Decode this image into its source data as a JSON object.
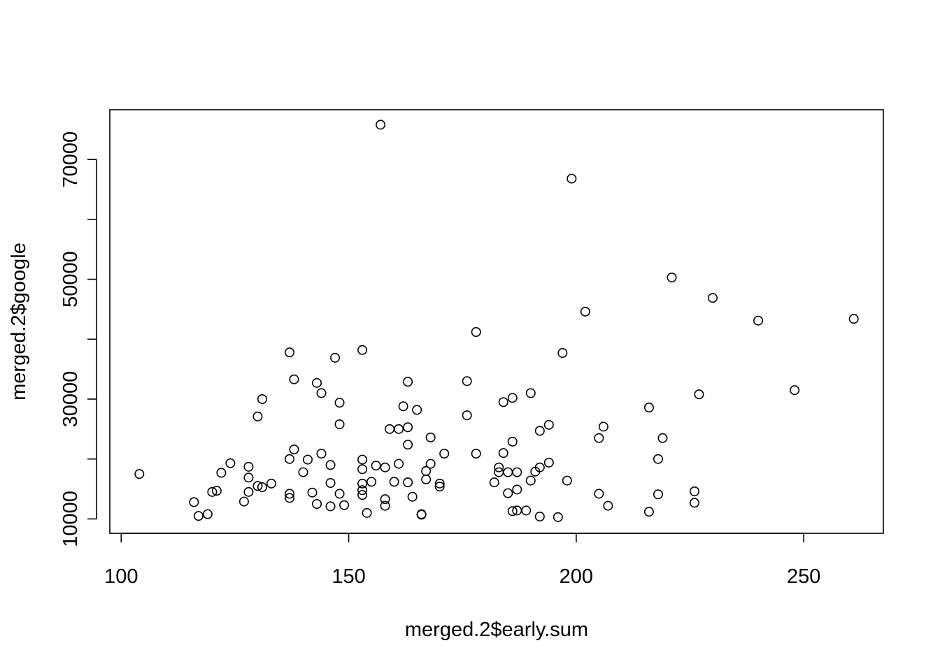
{
  "chart_data": {
    "type": "scatter",
    "title": "",
    "xlabel": "merged.2$early.sum",
    "ylabel": "merged.2$google",
    "xlim": [
      97.5,
      267.5
    ],
    "ylim": [
      7600,
      78300
    ],
    "xticks": [
      100,
      150,
      200,
      250
    ],
    "yticks": [
      10000,
      30000,
      50000,
      70000
    ],
    "ytick_marks": [
      10000,
      20000,
      30000,
      40000,
      50000,
      60000,
      70000
    ],
    "xtick_labels": [
      "100",
      "150",
      "200",
      "250"
    ],
    "ytick_labels": [
      "10000",
      "30000",
      "50000",
      "70000"
    ],
    "grid": false,
    "marker": "open-circle",
    "points": [
      {
        "x": 104,
        "y": 17500
      },
      {
        "x": 116,
        "y": 12800
      },
      {
        "x": 117,
        "y": 10500
      },
      {
        "x": 119,
        "y": 10800
      },
      {
        "x": 120,
        "y": 14500
      },
      {
        "x": 121,
        "y": 14700
      },
      {
        "x": 122,
        "y": 17700
      },
      {
        "x": 124,
        "y": 19300
      },
      {
        "x": 127,
        "y": 12900
      },
      {
        "x": 128,
        "y": 14500
      },
      {
        "x": 128,
        "y": 16900
      },
      {
        "x": 128,
        "y": 18700
      },
      {
        "x": 130,
        "y": 15500
      },
      {
        "x": 130,
        "y": 27100
      },
      {
        "x": 131,
        "y": 15300
      },
      {
        "x": 131,
        "y": 30000
      },
      {
        "x": 133,
        "y": 15900
      },
      {
        "x": 137,
        "y": 13500
      },
      {
        "x": 137,
        "y": 14200
      },
      {
        "x": 137,
        "y": 20000
      },
      {
        "x": 137,
        "y": 37800
      },
      {
        "x": 138,
        "y": 21600
      },
      {
        "x": 138,
        "y": 33300
      },
      {
        "x": 140,
        "y": 17800
      },
      {
        "x": 141,
        "y": 19900
      },
      {
        "x": 142,
        "y": 14400
      },
      {
        "x": 143,
        "y": 12500
      },
      {
        "x": 143,
        "y": 32700
      },
      {
        "x": 144,
        "y": 20900
      },
      {
        "x": 144,
        "y": 31000
      },
      {
        "x": 146,
        "y": 12100
      },
      {
        "x": 146,
        "y": 16000
      },
      {
        "x": 146,
        "y": 19000
      },
      {
        "x": 147,
        "y": 36900
      },
      {
        "x": 148,
        "y": 14200
      },
      {
        "x": 148,
        "y": 25800
      },
      {
        "x": 148,
        "y": 29400
      },
      {
        "x": 149,
        "y": 12300
      },
      {
        "x": 153,
        "y": 14000
      },
      {
        "x": 153,
        "y": 14800
      },
      {
        "x": 153,
        "y": 15900
      },
      {
        "x": 153,
        "y": 18300
      },
      {
        "x": 153,
        "y": 19900
      },
      {
        "x": 153,
        "y": 38200
      },
      {
        "x": 154,
        "y": 11000
      },
      {
        "x": 155,
        "y": 16200
      },
      {
        "x": 156,
        "y": 18900
      },
      {
        "x": 157,
        "y": 75800
      },
      {
        "x": 158,
        "y": 12200
      },
      {
        "x": 158,
        "y": 13300
      },
      {
        "x": 158,
        "y": 18600
      },
      {
        "x": 159,
        "y": 25000
      },
      {
        "x": 160,
        "y": 16200
      },
      {
        "x": 161,
        "y": 19200
      },
      {
        "x": 161,
        "y": 25000
      },
      {
        "x": 162,
        "y": 28800
      },
      {
        "x": 163,
        "y": 16100
      },
      {
        "x": 163,
        "y": 22400
      },
      {
        "x": 163,
        "y": 25300
      },
      {
        "x": 163,
        "y": 32900
      },
      {
        "x": 164,
        "y": 13700
      },
      {
        "x": 165,
        "y": 28200
      },
      {
        "x": 166,
        "y": 10700
      },
      {
        "x": 166,
        "y": 10800
      },
      {
        "x": 167,
        "y": 16600
      },
      {
        "x": 167,
        "y": 18000
      },
      {
        "x": 168,
        "y": 19200
      },
      {
        "x": 168,
        "y": 23600
      },
      {
        "x": 170,
        "y": 15400
      },
      {
        "x": 170,
        "y": 15900
      },
      {
        "x": 171,
        "y": 20900
      },
      {
        "x": 176,
        "y": 27300
      },
      {
        "x": 176,
        "y": 33000
      },
      {
        "x": 178,
        "y": 20900
      },
      {
        "x": 178,
        "y": 41200
      },
      {
        "x": 182,
        "y": 16100
      },
      {
        "x": 183,
        "y": 17800
      },
      {
        "x": 183,
        "y": 18600
      },
      {
        "x": 184,
        "y": 21000
      },
      {
        "x": 184,
        "y": 29500
      },
      {
        "x": 185,
        "y": 14300
      },
      {
        "x": 185,
        "y": 17800
      },
      {
        "x": 186,
        "y": 11300
      },
      {
        "x": 186,
        "y": 22900
      },
      {
        "x": 186,
        "y": 30200
      },
      {
        "x": 187,
        "y": 11400
      },
      {
        "x": 187,
        "y": 14900
      },
      {
        "x": 187,
        "y": 17800
      },
      {
        "x": 189,
        "y": 11400
      },
      {
        "x": 190,
        "y": 16400
      },
      {
        "x": 190,
        "y": 31000
      },
      {
        "x": 191,
        "y": 17900
      },
      {
        "x": 192,
        "y": 10400
      },
      {
        "x": 192,
        "y": 18600
      },
      {
        "x": 192,
        "y": 24700
      },
      {
        "x": 194,
        "y": 19400
      },
      {
        "x": 194,
        "y": 25700
      },
      {
        "x": 196,
        "y": 10300
      },
      {
        "x": 197,
        "y": 37700
      },
      {
        "x": 198,
        "y": 16400
      },
      {
        "x": 199,
        "y": 66800
      },
      {
        "x": 202,
        "y": 44600
      },
      {
        "x": 205,
        "y": 14200
      },
      {
        "x": 205,
        "y": 23500
      },
      {
        "x": 206,
        "y": 25400
      },
      {
        "x": 207,
        "y": 12200
      },
      {
        "x": 216,
        "y": 11200
      },
      {
        "x": 216,
        "y": 28600
      },
      {
        "x": 218,
        "y": 14100
      },
      {
        "x": 218,
        "y": 20000
      },
      {
        "x": 219,
        "y": 23500
      },
      {
        "x": 221,
        "y": 50300
      },
      {
        "x": 226,
        "y": 12700
      },
      {
        "x": 226,
        "y": 14600
      },
      {
        "x": 227,
        "y": 30800
      },
      {
        "x": 230,
        "y": 46900
      },
      {
        "x": 240,
        "y": 43100
      },
      {
        "x": 248,
        "y": 31500
      },
      {
        "x": 261,
        "y": 43400
      }
    ]
  }
}
